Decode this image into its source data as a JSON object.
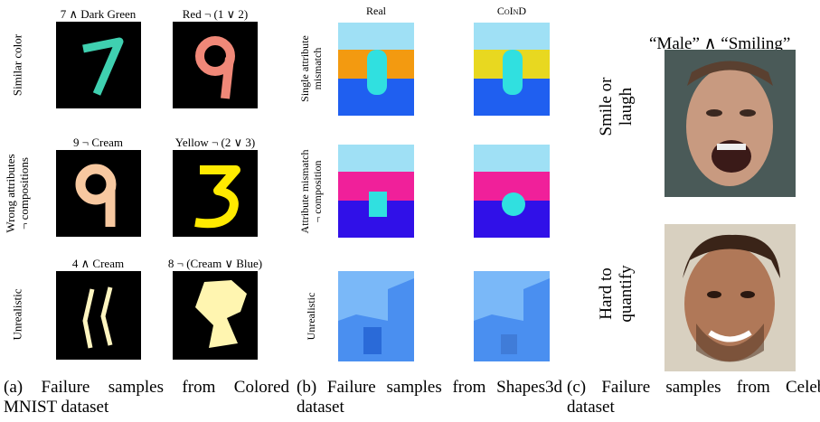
{
  "panels": [
    {
      "caption": "(a) Failure samples from Colored MNIST dataset",
      "row_labels": [
        [
          "Similar color"
        ],
        [
          "Wrong attributes",
          "¬ compositions"
        ],
        [
          "Unrealistic"
        ]
      ],
      "image_labels": [
        "7 ∧ Dark Green",
        "Red ¬ (1 ∨ 2)",
        "9 ¬ Cream",
        "Yellow ¬ (2 ∨ 3)",
        "4 ∧ Cream",
        "8 ¬ (Cream ∨ Blue)"
      ]
    },
    {
      "caption": "(b) Failure samples from Shapes3d dataset",
      "column_labels": [
        "Real",
        "CoInD"
      ],
      "row_labels": [
        [
          "Single attribute",
          "mismatch"
        ],
        [
          "Attribute mismatch",
          "¬ composition"
        ],
        [
          "Unrealistic"
        ]
      ]
    },
    {
      "caption": "(c) Failure samples from CelebA dataset",
      "title": "“Male” ∧ “Smiling”",
      "row_labels": [
        [
          "Smile or",
          "laugh"
        ],
        [
          "Hard to",
          "quantify"
        ]
      ]
    }
  ]
}
